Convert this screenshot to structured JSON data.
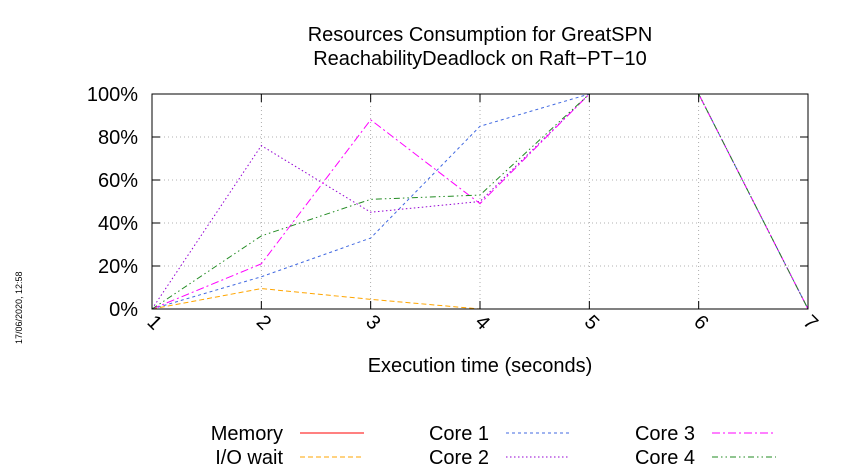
{
  "chart_data": {
    "type": "line",
    "title": [
      "Resources Consumption for GreatSPN",
      "ReachabilityDeadlock on Raft−PT−10"
    ],
    "xlabel": "Execution time (seconds)",
    "ylabel": "",
    "x": [
      1,
      2,
      3,
      4,
      5,
      6,
      7
    ],
    "xlim": [
      1,
      7
    ],
    "ylim": [
      0,
      100
    ],
    "x_tick_labels": [
      "1",
      "2",
      "3",
      "4",
      "5",
      "6",
      "7"
    ],
    "y_tick_labels": [
      "0%",
      "20%",
      "40%",
      "60%",
      "80%",
      "100%"
    ],
    "y_ticks": [
      0,
      20,
      40,
      60,
      80,
      100
    ],
    "grid": true,
    "legend_position": "bottom",
    "series": [
      {
        "name": "Memory",
        "color": "#ff0000",
        "dash": "solid",
        "values": [
          0,
          null,
          null,
          null,
          null,
          null,
          null
        ]
      },
      {
        "name": "I/O wait",
        "color": "#ffa500",
        "dash": "dashed",
        "values": [
          0,
          9.5,
          4.5,
          0,
          0,
          null,
          null
        ]
      },
      {
        "name": "Core 1",
        "color": "#4169e1",
        "dash": "dotted-dashed",
        "values": [
          0,
          15,
          33,
          85,
          100,
          100,
          0
        ]
      },
      {
        "name": "Core 2",
        "color": "#9400d3",
        "dash": "dotted",
        "values": [
          0,
          76,
          45,
          50,
          100,
          100,
          0
        ]
      },
      {
        "name": "Core 3",
        "color": "#ff00ff",
        "dash": "dash-dot",
        "values": [
          0,
          21,
          88,
          49,
          100,
          100,
          0
        ]
      },
      {
        "name": "Core 4",
        "color": "#228b22",
        "dash": "dash-dot-dot",
        "values": [
          0,
          34,
          51,
          53,
          100,
          100,
          0
        ]
      }
    ]
  },
  "timestamp": "17/06/2020, 12:58"
}
